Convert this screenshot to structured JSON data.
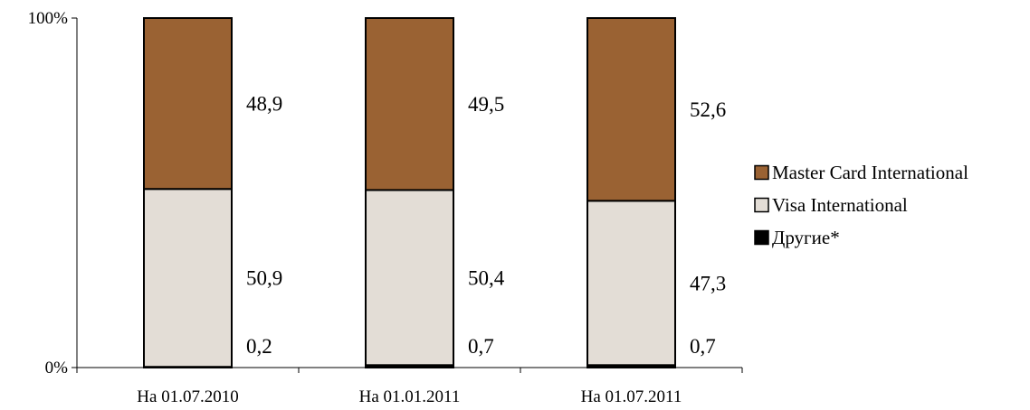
{
  "chart_data": {
    "type": "bar",
    "stacked": true,
    "percent_stacked": true,
    "categories": [
      "На 01.07.2010",
      "На 01.01.2011",
      "На 01.07.2011"
    ],
    "series": [
      {
        "name": "Другие*",
        "values": [
          0.2,
          0.7,
          0.7
        ],
        "color": "#000000"
      },
      {
        "name": "Visa International",
        "values": [
          50.9,
          50.4,
          47.3
        ],
        "color": "#E3DDD6"
      },
      {
        "name": "Master Card International",
        "values": [
          48.9,
          49.5,
          52.6
        ],
        "color": "#9A6233"
      }
    ],
    "data_labels": [
      [
        "0,2",
        "0,7",
        "0,7"
      ],
      [
        "50,9",
        "50,4",
        "47,3"
      ],
      [
        "48,9",
        "49,5",
        "52,6"
      ]
    ],
    "y_ticks": [
      "0%",
      "100%"
    ],
    "ylim": [
      0,
      100
    ],
    "legend_order": [
      "Master Card International",
      "Visa International",
      "Другие*"
    ],
    "legend_position": "right",
    "grid": false
  }
}
